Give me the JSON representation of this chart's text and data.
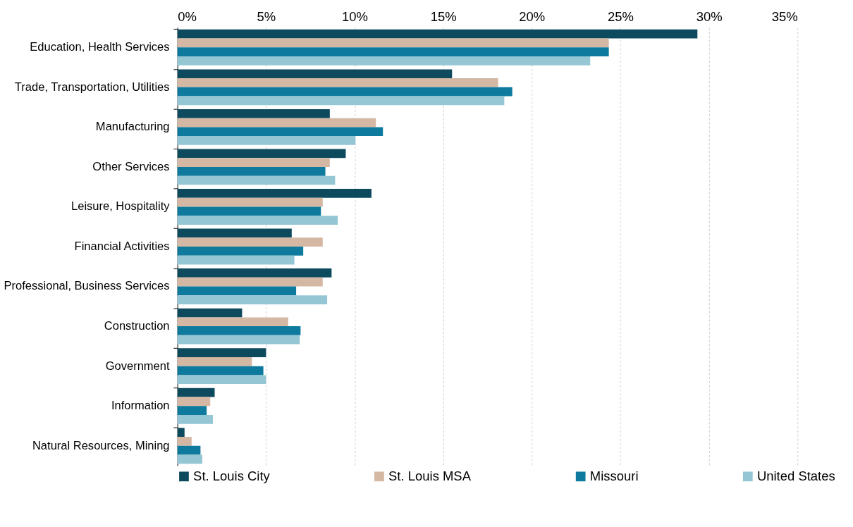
{
  "chart_data": {
    "type": "bar",
    "orientation": "horizontal",
    "categories": [
      "Education, Health Services",
      "Trade, Transportation, Utilities",
      "Manufacturing",
      "Other Services",
      "Leisure, Hospitality",
      "Financial Activities",
      "Professional, Business Services",
      "Construction",
      "Government",
      "Information",
      "Natural Resources, Mining"
    ],
    "series": [
      {
        "name": "St. Louis City",
        "color": "#0d4a5e",
        "values": [
          29.35,
          15.5,
          8.6,
          9.5,
          10.95,
          6.45,
          8.7,
          3.65,
          5.0,
          2.1,
          0.4
        ]
      },
      {
        "name": "St. Louis MSA",
        "color": "#d4b8a4",
        "values": [
          24.35,
          18.1,
          11.2,
          8.6,
          8.2,
          8.2,
          8.2,
          6.25,
          4.2,
          1.85,
          0.8
        ]
      },
      {
        "name": "Missouri",
        "color": "#0e7a9e",
        "values": [
          24.35,
          18.9,
          11.6,
          8.35,
          8.1,
          7.1,
          6.7,
          6.95,
          4.85,
          1.65,
          1.3
        ]
      },
      {
        "name": "United States",
        "color": "#94c6d4",
        "values": [
          23.3,
          18.45,
          10.05,
          8.9,
          9.05,
          6.6,
          8.45,
          6.9,
          5.0,
          2.0,
          1.4
        ]
      }
    ],
    "xlim": [
      0,
      35
    ],
    "xticks": [
      {
        "value": 0,
        "label": "0%"
      },
      {
        "value": 5,
        "label": "5%"
      },
      {
        "value": 10,
        "label": "10%"
      },
      {
        "value": 15,
        "label": "15%"
      },
      {
        "value": 20,
        "label": "20%"
      },
      {
        "value": 25,
        "label": "25%"
      },
      {
        "value": 30,
        "label": "30%"
      },
      {
        "value": 35,
        "label": "35%"
      }
    ],
    "grid": "x",
    "legend": "bottom"
  }
}
